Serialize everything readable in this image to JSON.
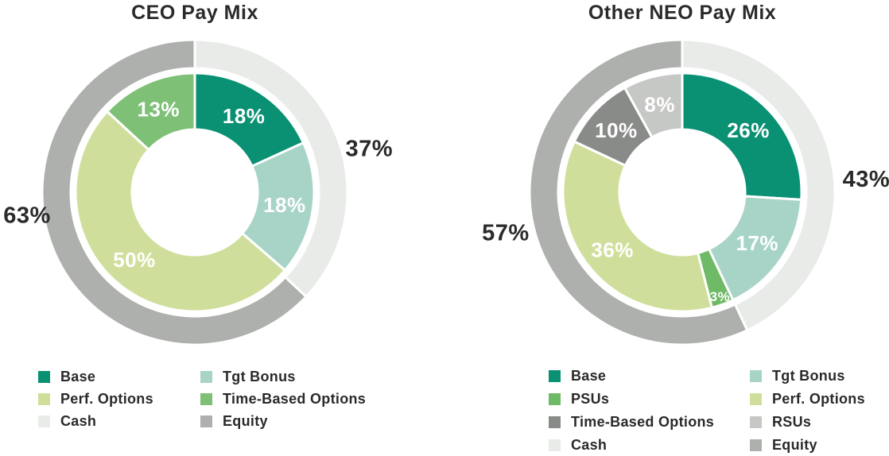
{
  "figure": {
    "background": "#ffffff",
    "text_color": "#2b2a29",
    "inner_label_color": "#ffffff"
  },
  "chart_data": [
    {
      "type": "donut",
      "title": "CEO Pay Mix",
      "legend_position": "bottom",
      "rings": {
        "outer": {
          "segments": [
            {
              "label": "Cash",
              "value": 37,
              "display": "37%",
              "color": "#e9ebe9",
              "label_angle": 76,
              "label_r": 226
            },
            {
              "label": "Equity",
              "value": 63,
              "display": "63%",
              "color": "#aeb0ad",
              "label_angle": 262,
              "label_r": 213
            }
          ]
        },
        "inner": {
          "segments": [
            {
              "label": "Base",
              "value": 18,
              "display": "18%",
              "color": "#0a9173"
            },
            {
              "label": "Tgt Bonus",
              "value": 18,
              "display": "18%",
              "color": "#a8d4c8"
            },
            {
              "label": "Perf. Options",
              "value": 50,
              "display": "50%",
              "color": "#cfdf9b"
            },
            {
              "label": "Time-Based Options",
              "value": 13,
              "display": "13%",
              "color": "#7dc076"
            }
          ]
        }
      },
      "legend": {
        "columns": [
          [
            {
              "label": "Base",
              "color": "#0a9173"
            },
            {
              "label": "Perf. Options",
              "color": "#cfdf9b"
            },
            {
              "label": "Cash",
              "color": "#e9ebe9"
            }
          ],
          [
            {
              "label": "Tgt Bonus",
              "color": "#a8d4c8"
            },
            {
              "label": "Time-Based Options",
              "color": "#7dc076"
            },
            {
              "label": "Equity",
              "color": "#aeb0ad"
            }
          ]
        ]
      }
    },
    {
      "type": "donut",
      "title": "Other NEO Pay Mix",
      "legend_position": "bottom",
      "rings": {
        "outer": {
          "segments": [
            {
              "label": "Cash",
              "value": 43,
              "display": "43%",
              "color": "#e9ebe9",
              "label_angle": 86,
              "label_r": 232
            },
            {
              "label": "Equity",
              "value": 57,
              "display": "57%",
              "color": "#aeb0ad",
              "label_angle": 257,
              "label_r": 228
            }
          ]
        },
        "inner": {
          "segments": [
            {
              "label": "Base",
              "value": 26,
              "display": "26%",
              "color": "#0a9173"
            },
            {
              "label": "Tgt Bonus",
              "value": 17,
              "display": "17%",
              "color": "#a8d4c8"
            },
            {
              "label": "PSUs",
              "value": 3,
              "display": "3%",
              "color": "#6fba66"
            },
            {
              "label": "Perf. Options",
              "value": 36,
              "display": "36%",
              "color": "#cfdf9b"
            },
            {
              "label": "Time-Based Options",
              "value": 10,
              "display": "10%",
              "color": "#898b88"
            },
            {
              "label": "RSUs",
              "value": 8,
              "display": "8%",
              "color": "#c6c8c5"
            }
          ]
        }
      },
      "legend": {
        "columns": [
          [
            {
              "label": "Base",
              "color": "#0a9173"
            },
            {
              "label": "PSUs",
              "color": "#6fba66"
            },
            {
              "label": "Time-Based Options",
              "color": "#898b88"
            },
            {
              "label": "Cash",
              "color": "#e9ebe9"
            }
          ],
          [
            {
              "label": "Tgt Bonus",
              "color": "#a8d4c8"
            },
            {
              "label": "Perf. Options",
              "color": "#cfdf9b"
            },
            {
              "label": "RSUs",
              "color": "#c6c8c5"
            },
            {
              "label": "Equity",
              "color": "#aeb0ad"
            }
          ]
        ]
      }
    }
  ]
}
